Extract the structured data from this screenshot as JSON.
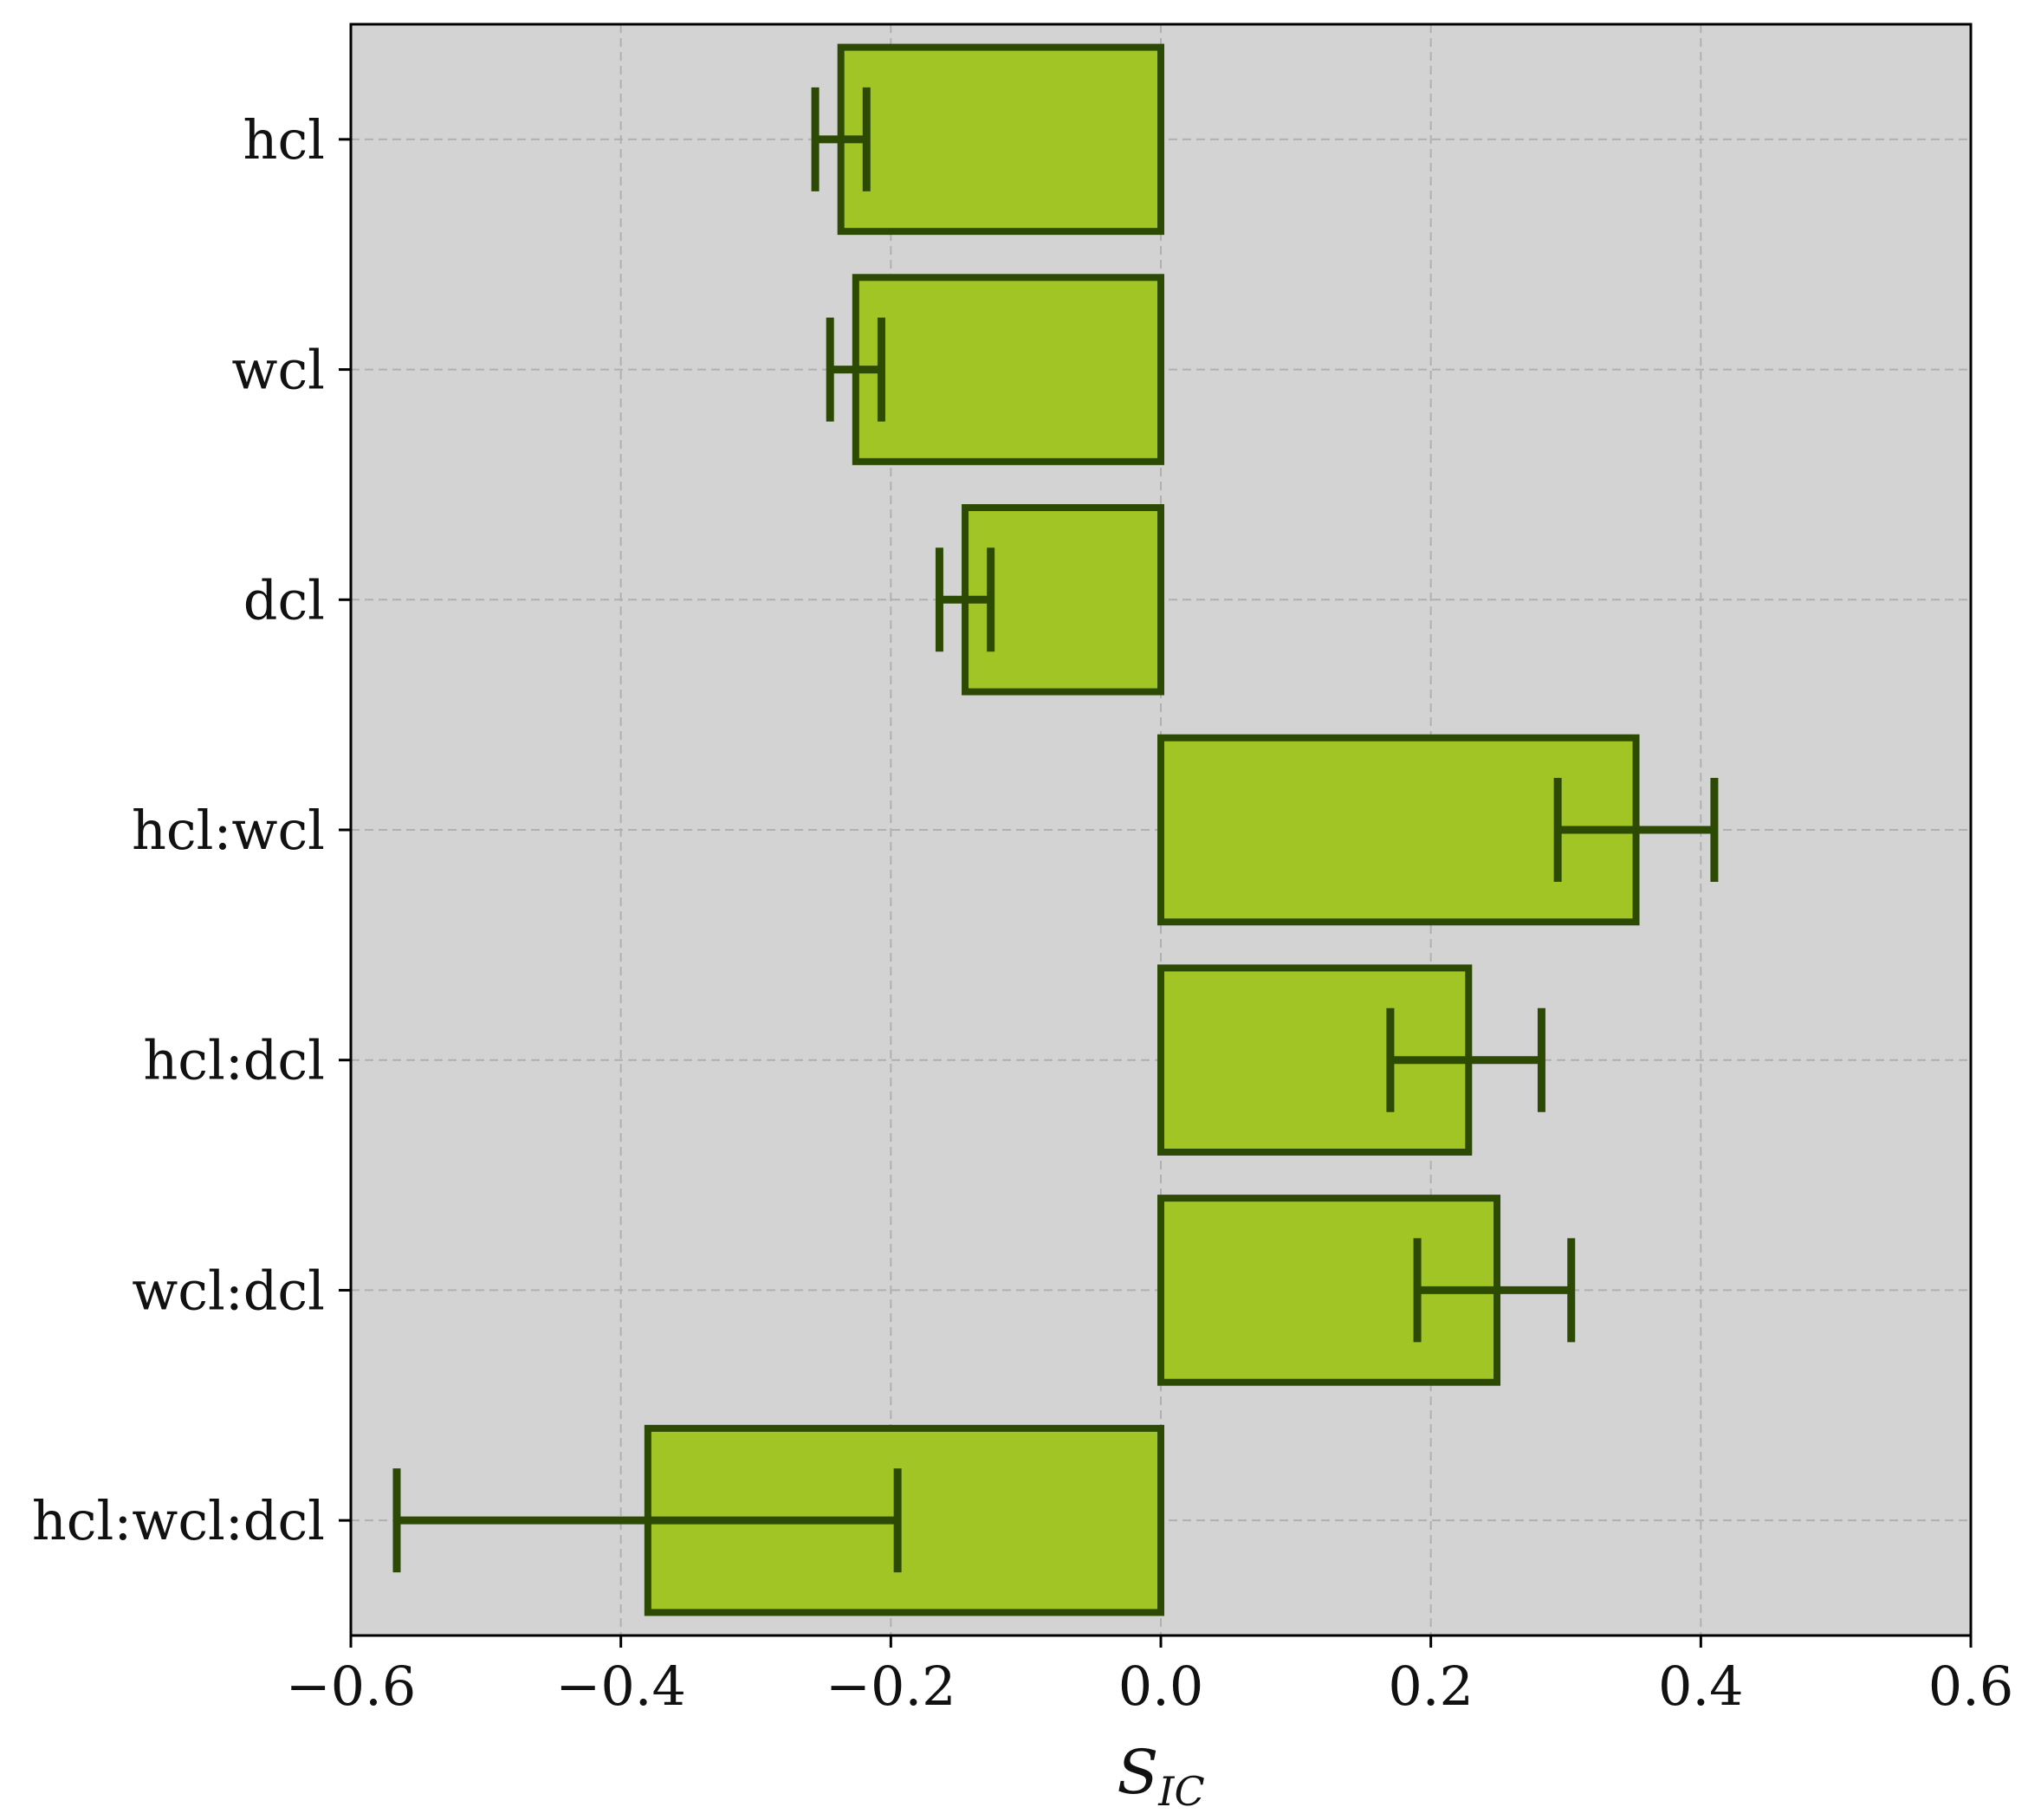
{
  "chart_data": {
    "type": "bar",
    "orientation": "horizontal",
    "categories": [
      "hcl",
      "wcl",
      "dcl",
      "hcl:wcl",
      "hcl:dcl",
      "wcl:dcl",
      "hcl:wcl:dcl"
    ],
    "values": [
      -0.237,
      -0.226,
      -0.145,
      0.352,
      0.228,
      0.249,
      -0.38
    ],
    "error_low": [
      -0.256,
      -0.245,
      -0.164,
      0.294,
      0.17,
      0.19,
      -0.566
    ],
    "error_high": [
      -0.218,
      -0.207,
      -0.126,
      0.41,
      0.282,
      0.304,
      -0.195
    ],
    "xlim": [
      -0.6,
      0.6
    ],
    "xticks": [
      "−0.6",
      "−0.4",
      "−0.2",
      "0.0",
      "0.2",
      "0.4",
      "0.6"
    ],
    "xtick_values": [
      -0.6,
      -0.4,
      -0.2,
      0.0,
      0.2,
      0.4,
      0.6
    ],
    "xlabel_main": "S",
    "xlabel_sub": "IC",
    "grid": true,
    "colors": {
      "bar_fill": "#a2c526",
      "bar_edge": "#2d4a05",
      "plot_bg": "#d3d3d3",
      "grid": "#b0b0b0"
    }
  }
}
